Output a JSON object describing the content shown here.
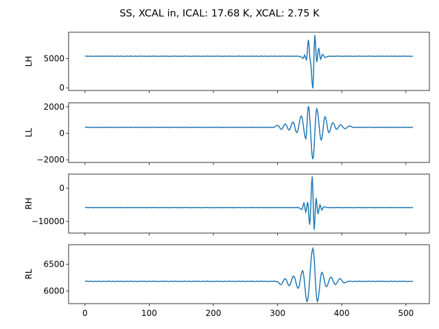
{
  "chart_data": {
    "type": "line",
    "title": "SS, XCAL in, ICAL: 17.68 K, XCAL: 2.75 K",
    "xlim": [
      -25.5,
      536.5
    ],
    "xticks": [
      0,
      100,
      200,
      300,
      400,
      500
    ],
    "n_samples": 512,
    "series_color": "#1f77b4",
    "panels": [
      {
        "name": "LH",
        "ylabel": "LH",
        "ylim": [
          -450,
          9500
        ],
        "yticks": [
          0,
          5000
        ],
        "baseline": 5400,
        "center": 355,
        "features": [
          {
            "x": 340,
            "y": 5050
          },
          {
            "x": 342,
            "y": 5600
          },
          {
            "x": 345,
            "y": 4800
          },
          {
            "x": 348,
            "y": 8200
          },
          {
            "x": 351,
            "y": 4600
          },
          {
            "x": 355,
            "y": -100
          },
          {
            "x": 358,
            "y": 9000
          },
          {
            "x": 361,
            "y": 4400
          },
          {
            "x": 364,
            "y": 6800
          },
          {
            "x": 367,
            "y": 4900
          },
          {
            "x": 370,
            "y": 5700
          },
          {
            "x": 374,
            "y": 5200
          }
        ]
      },
      {
        "name": "LL",
        "ylabel": "LL",
        "ylim": [
          -2200,
          2300
        ],
        "yticks": [
          -2000,
          0,
          2000
        ],
        "baseline": 450,
        "center": 355,
        "features": [
          {
            "x": 300,
            "y": 600
          },
          {
            "x": 306,
            "y": 300
          },
          {
            "x": 312,
            "y": 700
          },
          {
            "x": 318,
            "y": 250
          },
          {
            "x": 324,
            "y": 850
          },
          {
            "x": 330,
            "y": 50
          },
          {
            "x": 337,
            "y": 1300
          },
          {
            "x": 344,
            "y": -400
          },
          {
            "x": 348,
            "y": 2050
          },
          {
            "x": 355,
            "y": -1950
          },
          {
            "x": 361,
            "y": 1850
          },
          {
            "x": 368,
            "y": -500
          },
          {
            "x": 374,
            "y": 1250
          },
          {
            "x": 380,
            "y": 50
          },
          {
            "x": 386,
            "y": 800
          },
          {
            "x": 392,
            "y": 300
          },
          {
            "x": 398,
            "y": 650
          },
          {
            "x": 405,
            "y": 350
          },
          {
            "x": 412,
            "y": 550
          }
        ]
      },
      {
        "name": "RH",
        "ylabel": "RH",
        "ylim": [
          -13500,
          4200
        ],
        "yticks": [
          -10000,
          0
        ],
        "baseline": -5850,
        "center": 355,
        "features": [
          {
            "x": 338,
            "y": -6400
          },
          {
            "x": 341,
            "y": -4500
          },
          {
            "x": 344,
            "y": -7200
          },
          {
            "x": 347,
            "y": -4200
          },
          {
            "x": 350,
            "y": -11000
          },
          {
            "x": 354,
            "y": 3500
          },
          {
            "x": 357,
            "y": -12500
          },
          {
            "x": 360,
            "y": -3000
          },
          {
            "x": 363,
            "y": -7800
          },
          {
            "x": 366,
            "y": -5000
          },
          {
            "x": 369,
            "y": -6600
          },
          {
            "x": 372,
            "y": -5600
          }
        ]
      },
      {
        "name": "RL",
        "ylabel": "RL",
        "ylim": [
          5760,
          6870
        ],
        "yticks": [
          6000,
          6500
        ],
        "baseline": 6180,
        "center": 355,
        "features": [
          {
            "x": 305,
            "y": 6120
          },
          {
            "x": 312,
            "y": 6230
          },
          {
            "x": 318,
            "y": 6100
          },
          {
            "x": 325,
            "y": 6280
          },
          {
            "x": 332,
            "y": 6050
          },
          {
            "x": 339,
            "y": 6380
          },
          {
            "x": 346,
            "y": 5800
          },
          {
            "x": 355,
            "y": 6800
          },
          {
            "x": 362,
            "y": 5800
          },
          {
            "x": 369,
            "y": 6350
          },
          {
            "x": 376,
            "y": 6080
          },
          {
            "x": 383,
            "y": 6260
          },
          {
            "x": 390,
            "y": 6120
          },
          {
            "x": 397,
            "y": 6230
          },
          {
            "x": 404,
            "y": 6150
          }
        ]
      }
    ]
  }
}
